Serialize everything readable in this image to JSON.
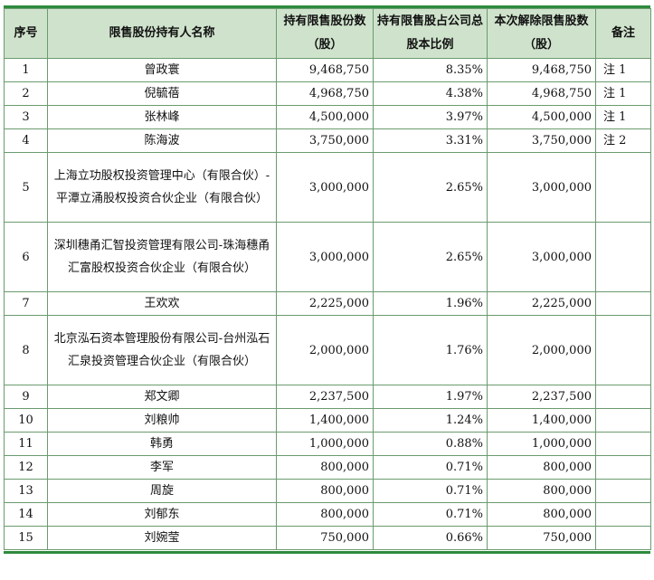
{
  "headers": {
    "seq": "序号",
    "holder": "限售股份持有人名称",
    "held": "持有限售股份数（股）",
    "ratio": "持有限售股占公司总股本比例",
    "release": "本次解除限售股数（股）",
    "remark": "备注"
  },
  "rows": [
    {
      "seq": "1",
      "name": "曾政寰",
      "held": "9,468,750",
      "ratio": "8.35%",
      "release": "9,468,750",
      "remark": "注 1"
    },
    {
      "seq": "2",
      "name": "倪毓蓓",
      "held": "4,968,750",
      "ratio": "4.38%",
      "release": "4,968,750",
      "remark": "注 1"
    },
    {
      "seq": "3",
      "name": "张林峰",
      "held": "4,500,000",
      "ratio": "3.97%",
      "release": "4,500,000",
      "remark": "注 1"
    },
    {
      "seq": "4",
      "name": "陈海波",
      "held": "3,750,000",
      "ratio": "3.31%",
      "release": "3,750,000",
      "remark": "注 2"
    },
    {
      "seq": "5",
      "name": "上海立功股权投资管理中心（有限合伙）-平潭立涌股权投资合伙企业（有限合伙）",
      "held": "3,000,000",
      "ratio": "2.65%",
      "release": "3,000,000",
      "remark": ""
    },
    {
      "seq": "6",
      "name": "深圳穗甬汇智投资管理有限公司-珠海穗甬汇富股权投资合伙企业（有限合伙）",
      "held": "3,000,000",
      "ratio": "2.65%",
      "release": "3,000,000",
      "remark": ""
    },
    {
      "seq": "7",
      "name": "王欢欢",
      "held": "2,225,000",
      "ratio": "1.96%",
      "release": "2,225,000",
      "remark": ""
    },
    {
      "seq": "8",
      "name": "北京泓石资本管理股份有限公司-台州泓石汇泉投资管理合伙企业（有限合伙）",
      "held": "2,000,000",
      "ratio": "1.76%",
      "release": "2,000,000",
      "remark": ""
    },
    {
      "seq": "9",
      "name": "郑文卿",
      "held": "2,237,500",
      "ratio": "1.97%",
      "release": "2,237,500",
      "remark": ""
    },
    {
      "seq": "10",
      "name": "刘粮帅",
      "held": "1,400,000",
      "ratio": "1.24%",
      "release": "1,400,000",
      "remark": ""
    },
    {
      "seq": "11",
      "name": "韩勇",
      "held": "1,000,000",
      "ratio": "0.88%",
      "release": "1,000,000",
      "remark": ""
    },
    {
      "seq": "12",
      "name": "李军",
      "held": "800,000",
      "ratio": "0.71%",
      "release": "800,000",
      "remark": ""
    },
    {
      "seq": "13",
      "name": "周旋",
      "held": "800,000",
      "ratio": "0.71%",
      "release": "800,000",
      "remark": ""
    },
    {
      "seq": "14",
      "name": "刘郁东",
      "held": "800,000",
      "ratio": "0.71%",
      "release": "800,000",
      "remark": ""
    },
    {
      "seq": "15",
      "name": "刘婉莹",
      "held": "750,000",
      "ratio": "0.66%",
      "release": "750,000",
      "remark": ""
    }
  ]
}
